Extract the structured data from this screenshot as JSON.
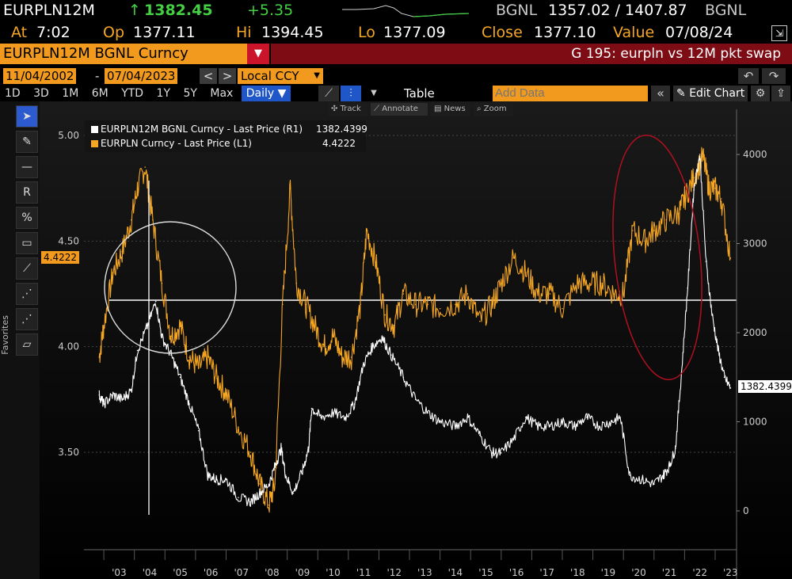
{
  "header": {
    "ticker": "EURPLN12M",
    "arrow": "↑",
    "last": "1382.45",
    "change": "+5.35",
    "source1": "BGNL",
    "bid_ask": "1357.02 / 1407.87",
    "source2": "BGNL",
    "at_label": "At",
    "at_time": "7:02",
    "op_label": "Op",
    "op": "1377.11",
    "hi_label": "Hi",
    "hi": "1394.45",
    "lo_label": "Lo",
    "lo": "1377.09",
    "close_label": "Close",
    "close": "1377.10",
    "value_label": "Value",
    "value_date": "07/08/24"
  },
  "security_bar": {
    "title": "EURPLN12M BGNL Curncy",
    "drop_icon": "▼",
    "function_title": "G 195: eurpln vs 12M pkt swap"
  },
  "date_bar": {
    "start": "11/04/2002",
    "separator": "-",
    "end": "07/04/2023",
    "prev": "<",
    "next": ">",
    "currency": "Local CCY",
    "table_label": "Table",
    "add_data_placeholder": "Add Data",
    "edit_chart": "Edit Chart",
    "collapse_icon": "«"
  },
  "range_bar": {
    "ranges": [
      "1D",
      "3D",
      "1M",
      "6M",
      "YTD",
      "1Y",
      "5Y",
      "Max"
    ],
    "frequency": "Daily ▼"
  },
  "chart_toolbar": {
    "track": "Track",
    "annotate": "Annotate",
    "news": "News",
    "zoom": "Zoom"
  },
  "sidebar": {
    "favorites": "Favorites"
  },
  "legend": [
    {
      "name": "EURPLN12M BGNL Curncy - Last Price (R1)",
      "value": "1382.4399",
      "color": "#ffffff"
    },
    {
      "name": "EURPLN Curncy - Last Price (L1)",
      "value": "4.4222",
      "color": "#f5a623"
    }
  ],
  "tags": {
    "left_last": "4.4222",
    "right_last": "1382.4399"
  },
  "chart_data": {
    "type": "line",
    "x_labels": [
      "'03",
      "'04",
      "'05",
      "'06",
      "'07",
      "'08",
      "'09",
      "'10",
      "'11",
      "'12",
      "'13",
      "'14",
      "'15",
      "'16",
      "'17",
      "'18",
      "'19",
      "'20",
      "'21",
      "'22",
      "'23"
    ],
    "left_axis": {
      "ticks": [
        "5.00",
        "4.50",
        "4.00",
        "3.50"
      ],
      "values": [
        5.0,
        4.5,
        4.0,
        3.5
      ]
    },
    "right_axis": {
      "ticks": [
        "4000",
        "3000",
        "2000",
        "1000",
        "0"
      ],
      "values": [
        4000,
        3000,
        2000,
        1000,
        0
      ]
    },
    "reference_line": {
      "left_value": 4.22
    },
    "series": [
      {
        "name": "EURPLN Curncy - Last Price (L1)",
        "color": "#f5a623",
        "axis": "left",
        "x": [
          2002.85,
          2003.0,
          2003.3,
          2003.6,
          2003.9,
          2004.1,
          2004.35,
          2004.6,
          2004.9,
          2005.2,
          2005.5,
          2005.8,
          2006.1,
          2006.4,
          2006.7,
          2007.0,
          2007.4,
          2007.8,
          2008.1,
          2008.4,
          2008.6,
          2008.85,
          2009.1,
          2009.3,
          2009.6,
          2009.9,
          2010.2,
          2010.5,
          2010.8,
          2011.1,
          2011.4,
          2011.6,
          2011.9,
          2012.2,
          2012.5,
          2012.8,
          2013.2,
          2013.6,
          2014.0,
          2014.5,
          2014.9,
          2015.3,
          2015.7,
          2016.0,
          2016.4,
          2016.8,
          2017.2,
          2017.6,
          2018.0,
          2018.5,
          2018.9,
          2019.3,
          2019.7,
          2020.0,
          2020.3,
          2020.7,
          2021.0,
          2021.4,
          2021.8,
          2022.0,
          2022.3,
          2022.6,
          2022.8,
          2023.0,
          2023.2,
          2023.5
        ],
        "y": [
          3.95,
          4.1,
          4.35,
          4.45,
          4.6,
          4.75,
          4.85,
          4.6,
          4.3,
          4.05,
          4.1,
          3.95,
          3.9,
          3.95,
          3.85,
          3.78,
          3.62,
          3.5,
          3.35,
          3.25,
          3.35,
          4.2,
          4.75,
          4.3,
          4.2,
          4.1,
          4.0,
          4.05,
          3.95,
          3.95,
          4.2,
          4.55,
          4.4,
          4.15,
          4.1,
          4.25,
          4.2,
          4.2,
          4.18,
          4.2,
          4.25,
          4.12,
          4.2,
          4.3,
          4.42,
          4.35,
          4.25,
          4.25,
          4.18,
          4.3,
          4.3,
          4.3,
          4.25,
          4.25,
          4.55,
          4.5,
          4.55,
          4.6,
          4.63,
          4.7,
          4.8,
          4.9,
          4.75,
          4.75,
          4.7,
          4.42
        ]
      },
      {
        "name": "EURPLN12M BGNL Curncy - Last Price (R1)",
        "color": "#ffffff",
        "axis": "right",
        "x": [
          2002.85,
          2003.0,
          2003.3,
          2003.6,
          2003.9,
          2004.1,
          2004.4,
          2004.7,
          2004.9,
          2005.2,
          2005.5,
          2005.8,
          2006.1,
          2006.4,
          2006.7,
          2007.0,
          2007.4,
          2007.8,
          2008.1,
          2008.4,
          2008.6,
          2008.8,
          2008.95,
          2009.2,
          2009.5,
          2009.7,
          2009.8,
          2010.1,
          2010.5,
          2010.9,
          2011.2,
          2011.5,
          2011.8,
          2012.1,
          2012.4,
          2012.8,
          2013.2,
          2013.6,
          2014.0,
          2014.5,
          2014.9,
          2015.3,
          2015.7,
          2016.0,
          2016.4,
          2016.8,
          2017.2,
          2017.6,
          2018.0,
          2018.4,
          2018.8,
          2019.2,
          2019.6,
          2019.9,
          2020.2,
          2020.6,
          2021.0,
          2021.3,
          2021.5,
          2021.7,
          2021.9,
          2022.1,
          2022.3,
          2022.5,
          2022.7,
          2022.9,
          2023.1,
          2023.3,
          2023.5
        ],
        "y": [
          1300,
          1200,
          1300,
          1250,
          1350,
          1800,
          2050,
          2350,
          1950,
          1750,
          1500,
          1200,
          900,
          400,
          350,
          350,
          150,
          100,
          200,
          300,
          500,
          700,
          400,
          200,
          450,
          700,
          1150,
          1050,
          1100,
          1050,
          1200,
          1650,
          1850,
          1950,
          1750,
          1500,
          1250,
          1100,
          1000,
          950,
          1050,
          850,
          650,
          650,
          800,
          1050,
          950,
          950,
          1000,
          950,
          1050,
          950,
          1000,
          1050,
          400,
          350,
          300,
          400,
          500,
          700,
          1550,
          2500,
          3600,
          4000,
          2800,
          2200,
          1800,
          1500,
          1380
        ]
      }
    ]
  }
}
